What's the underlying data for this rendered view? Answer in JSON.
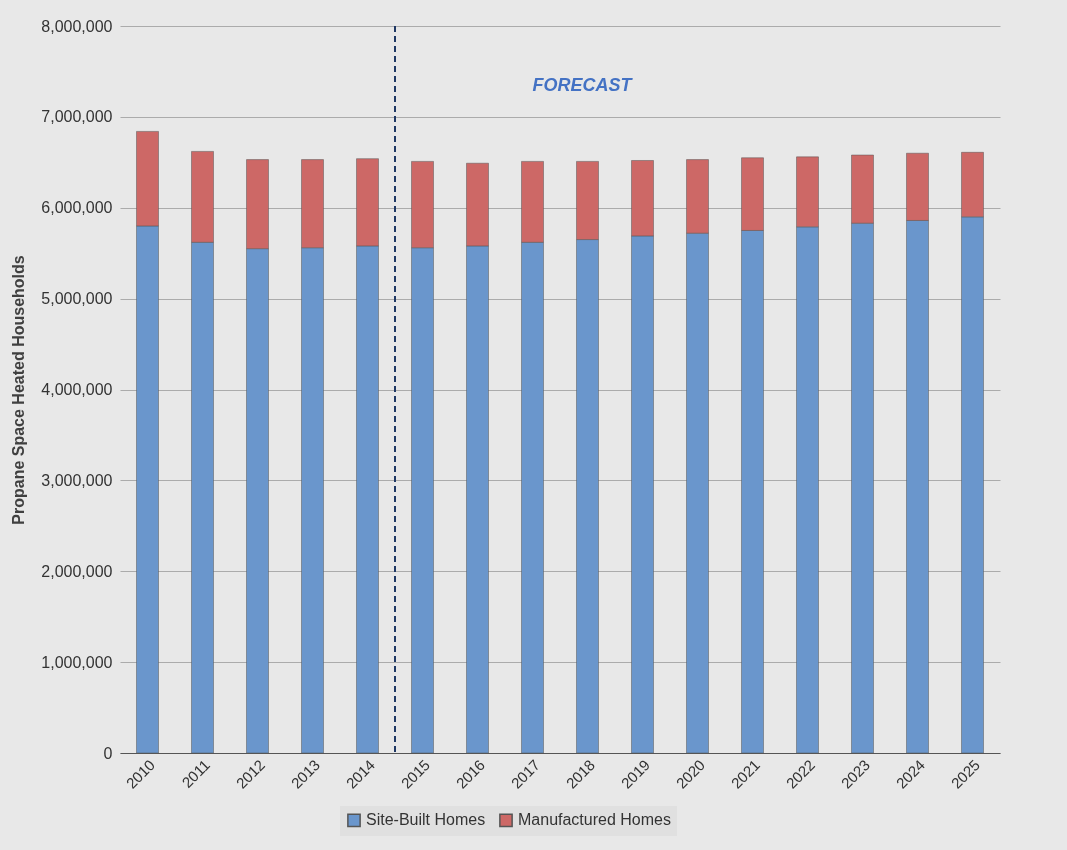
{
  "chart_data": {
    "type": "bar",
    "stacked": true,
    "ylabel": "Propane Space Heated Households",
    "categories": [
      "2010",
      "2011",
      "2012",
      "2013",
      "2014",
      "2015",
      "2016",
      "2017",
      "2018",
      "2019",
      "2020",
      "2021",
      "2022",
      "2023",
      "2024",
      "2025"
    ],
    "series": [
      {
        "name": "Site-Built Homes",
        "color": "#6a96cc",
        "values": [
          5800000,
          5620000,
          5550000,
          5560000,
          5580000,
          5560000,
          5580000,
          5620000,
          5650000,
          5690000,
          5720000,
          5750000,
          5790000,
          5830000,
          5860000,
          5900000
        ]
      },
      {
        "name": "Manufactured Homes",
        "color": "#cd6866",
        "values": [
          1040000,
          1000000,
          980000,
          970000,
          960000,
          950000,
          910000,
          890000,
          860000,
          830000,
          810000,
          800000,
          770000,
          750000,
          740000,
          710000
        ]
      }
    ],
    "ylim": [
      0,
      8000000
    ],
    "yticks": [
      0,
      {
        "value": 1000000,
        "label": "1,000,000"
      },
      {
        "value": 2000000,
        "label": "2,000,000"
      },
      {
        "value": 3000000,
        "label": "3,000,000"
      },
      {
        "value": 4000000,
        "label": "4,000,000"
      },
      {
        "value": 5000000,
        "label": "5,000,000"
      },
      {
        "value": 6000000,
        "label": "6,000,000"
      },
      {
        "value": 7000000,
        "label": "7,000,000"
      },
      {
        "value": 8000000,
        "label": "8,000,000"
      }
    ],
    "annotations": [
      "FORECAST"
    ],
    "grid": "y",
    "legend": "bottom",
    "ref_lines": [
      {
        "axis": "x",
        "value": "2015",
        "color": "#1f3864",
        "line_style": "dashed"
      }
    ]
  }
}
